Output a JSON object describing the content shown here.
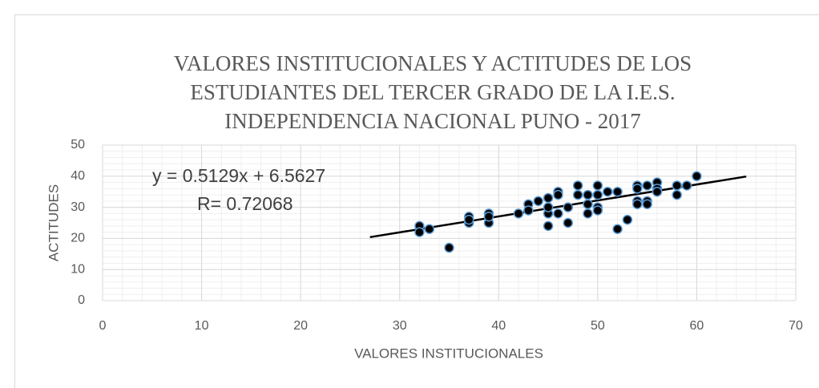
{
  "chart_data": {
    "type": "scatter",
    "title": [
      "VALORES INSTITUCIONALES Y ACTITUDES DE LOS",
      "ESTUDIANTES DEL TERCER GRADO DE LA I.E.S.",
      "INDEPENDENCIA NACIONAL PUNO - 2017"
    ],
    "x_label": "VALORES INSTITUCIONALES",
    "y_label": "ACTITUDES",
    "x": [
      32,
      32,
      33,
      35,
      37,
      37,
      37,
      39,
      39,
      39,
      42,
      43,
      43,
      44,
      45,
      45,
      45,
      45,
      46,
      46,
      46,
      47,
      47,
      48,
      48,
      49,
      49,
      49,
      50,
      50,
      50,
      50,
      51,
      52,
      52,
      53,
      54,
      54,
      54,
      54,
      55,
      55,
      55,
      56,
      56,
      56,
      58,
      58,
      59,
      60
    ],
    "y": [
      24,
      22,
      23,
      17,
      27,
      25,
      26,
      28,
      25,
      27,
      28,
      31,
      29,
      32,
      33,
      28,
      24,
      30,
      35,
      34,
      28,
      30,
      25,
      37,
      34,
      34,
      31,
      28,
      37,
      34,
      30,
      29,
      35,
      35,
      23,
      26,
      37,
      36,
      32,
      31,
      37,
      32,
      31,
      38,
      36,
      35,
      37,
      34,
      37,
      40
    ],
    "color": "#000000",
    "edge_color": "#5b9bd5",
    "trendline": {
      "slope": 0.5129,
      "intercept": 6.5627,
      "x": [
        27,
        65
      ],
      "color": "#000000"
    },
    "annotations": [
      "y = 0.5129x + 6.5627",
      "R= 0.72068"
    ],
    "xlim": [
      0,
      70
    ],
    "xticks": [
      0,
      10,
      20,
      30,
      40,
      50,
      60,
      70
    ],
    "ylim": [
      0,
      50
    ],
    "yticks": [
      0,
      10,
      20,
      30,
      40,
      50
    ],
    "grid": true,
    "minor_xstep": 2,
    "minor_ystep": 2
  }
}
